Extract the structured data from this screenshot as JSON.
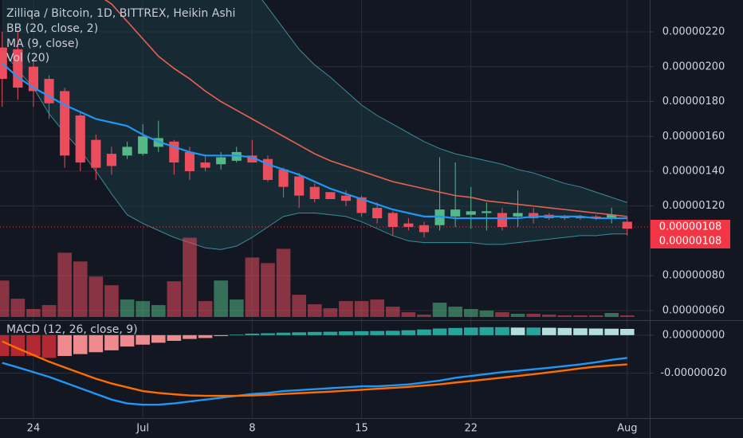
{
  "chart_data": [
    {
      "type": "candlestick",
      "title": "Zilliqa / Bitcoin, 1D, BITTREX, Heikin Ashi",
      "x": [
        -2,
        -1,
        0,
        1,
        2,
        3,
        4,
        5,
        6,
        7,
        8,
        9,
        10,
        11,
        12,
        13,
        14,
        15,
        16,
        17,
        18,
        19,
        20,
        21,
        22,
        23,
        24,
        25,
        26,
        27,
        28,
        29,
        30,
        31,
        32,
        33,
        34,
        35,
        36,
        37,
        38
      ],
      "open": [
        2.11e-06,
        2.1e-06,
        2e-06,
        1.93e-06,
        1.86e-06,
        1.72e-06,
        1.58e-06,
        1.5e-06,
        1.49e-06,
        1.5e-06,
        1.54e-06,
        1.57e-06,
        1.51e-06,
        1.45e-06,
        1.44e-06,
        1.46e-06,
        1.49e-06,
        1.47e-06,
        1.41e-06,
        1.37e-06,
        1.31e-06,
        1.28e-06,
        1.26e-06,
        1.25e-06,
        1.19e-06,
        1.16e-06,
        1.1e-06,
        1.09e-06,
        1.09e-06,
        1.14e-06,
        1.15e-06,
        1.16e-06,
        1.16e-06,
        1.14e-06,
        1.16e-06,
        1.15e-06,
        1.14e-06,
        1.14e-06,
        1.14e-06,
        1.13e-06,
        1.11e-06
      ],
      "high": [
        2.2e-06,
        2.2e-06,
        2.04e-06,
        1.95e-06,
        1.88e-06,
        1.74e-06,
        1.61e-06,
        1.54e-06,
        1.57e-06,
        1.67e-06,
        1.69e-06,
        1.58e-06,
        1.54e-06,
        1.49e-06,
        1.51e-06,
        1.54e-06,
        1.58e-06,
        1.49e-06,
        1.42e-06,
        1.39e-06,
        1.33e-06,
        1.28e-06,
        1.29e-06,
        1.26e-06,
        1.22e-06,
        1.17e-06,
        1.13e-06,
        1.11e-06,
        1.48e-06,
        1.45e-06,
        1.31e-06,
        1.22e-06,
        1.19e-06,
        1.29e-06,
        1.19e-06,
        1.16e-06,
        1.15e-06,
        1.15e-06,
        1.15e-06,
        1.19e-06,
        1.14e-06
      ],
      "low": [
        1.77e-06,
        1.81e-06,
        1.77e-06,
        1.7e-06,
        1.42e-06,
        1.4e-06,
        1.35e-06,
        1.38e-06,
        1.47e-06,
        1.49e-06,
        1.51e-06,
        1.38e-06,
        1.35e-06,
        1.4e-06,
        1.41e-06,
        1.45e-06,
        1.45e-06,
        1.34e-06,
        1.25e-06,
        1.19e-06,
        1.22e-06,
        1.24e-06,
        1.2e-06,
        1.14e-06,
        1.1e-06,
        1.03e-06,
        1.06e-06,
        1.02e-06,
        1.06e-06,
        1.08e-06,
        1.07e-06,
        1.06e-06,
        1.06e-06,
        1.08e-06,
        1.1e-06,
        1.12e-06,
        1.12e-06,
        1.12e-06,
        1.12e-06,
        1.1e-06,
        1.03e-06
      ],
      "close": [
        1.93e-06,
        1.88e-06,
        1.86e-06,
        1.79e-06,
        1.49e-06,
        1.45e-06,
        1.42e-06,
        1.43e-06,
        1.54e-06,
        1.6e-06,
        1.59e-06,
        1.45e-06,
        1.4e-06,
        1.42e-06,
        1.48e-06,
        1.51e-06,
        1.45e-06,
        1.35e-06,
        1.31e-06,
        1.26e-06,
        1.24e-06,
        1.24e-06,
        1.23e-06,
        1.16e-06,
        1.13e-06,
        1.08e-06,
        1.08e-06,
        1.05e-06,
        1.18e-06,
        1.18e-06,
        1.17e-06,
        1.17e-06,
        1.08e-06,
        1.16e-06,
        1.13e-06,
        1.13e-06,
        1.13e-06,
        1.13e-06,
        1.13e-06,
        1.15e-06,
        1.07e-06
      ],
      "up_color": "#53b987",
      "down_color": "#eb4d5c",
      "xlim": [
        -2.14,
        39.44
      ],
      "xticks": [
        {
          "value": 0,
          "label": "24"
        },
        {
          "value": 7,
          "label": "Jul"
        },
        {
          "value": 14,
          "label": "8"
        },
        {
          "value": 21,
          "label": "15"
        },
        {
          "value": 28,
          "label": "22"
        },
        {
          "value": 38,
          "label": "Aug"
        }
      ],
      "ylim": [
        5.45e-07,
        2.383e-06
      ],
      "yticks": [
        {
          "value": 6e-07,
          "label": "0.00000060"
        },
        {
          "value": 8e-07,
          "label": "0.00000080"
        },
        {
          "value": 1.2e-06,
          "label": "0.00000120"
        },
        {
          "value": 1.4e-06,
          "label": "0.00000140"
        },
        {
          "value": 1.6e-06,
          "label": "0.00000160"
        },
        {
          "value": 1.8e-06,
          "label": "0.00000180"
        },
        {
          "value": 2e-06,
          "label": "0.00000200"
        },
        {
          "value": 2.2e-06,
          "label": "0.00000220"
        }
      ],
      "grid": true,
      "bands": {
        "name": "BB (20, close, 2)",
        "band_color": "#3a8c9a",
        "basis_color": "#e8614f",
        "fill": "#1b3a44",
        "upper": [
          4.2e-06,
          4.1e-06,
          4e-06,
          3.9e-06,
          3.8e-06,
          3.7e-06,
          3.6e-06,
          3.5e-06,
          3.4e-06,
          3.3e-06,
          3.2e-06,
          3.1e-06,
          3e-06,
          2.9e-06,
          2.75e-06,
          2.6e-06,
          2.46e-06,
          2.34e-06,
          2.22e-06,
          2.1e-06,
          2.01e-06,
          1.94e-06,
          1.86e-06,
          1.78e-06,
          1.72e-06,
          1.67e-06,
          1.62e-06,
          1.57e-06,
          1.53e-06,
          1.5e-06,
          1.48e-06,
          1.46e-06,
          1.44e-06,
          1.41e-06,
          1.39e-06,
          1.36e-06,
          1.33e-06,
          1.31e-06,
          1.28e-06,
          1.25e-06,
          1.22e-06
        ],
        "basis": [
          2.96e-06,
          2.87e-06,
          2.78e-06,
          2.69e-06,
          2.6e-06,
          2.51e-06,
          2.42e-06,
          2.36e-06,
          2.26e-06,
          2.16e-06,
          2.06e-06,
          1.99e-06,
          1.93e-06,
          1.86e-06,
          1.8e-06,
          1.75e-06,
          1.7e-06,
          1.65e-06,
          1.6e-06,
          1.55e-06,
          1.5e-06,
          1.46e-06,
          1.43e-06,
          1.4e-06,
          1.37e-06,
          1.34e-06,
          1.32e-06,
          1.3e-06,
          1.28e-06,
          1.26e-06,
          1.25e-06,
          1.23e-06,
          1.22e-06,
          1.21e-06,
          1.2e-06,
          1.19e-06,
          1.18e-06,
          1.17e-06,
          1.16e-06,
          1.15e-06,
          1.14e-06
        ],
        "lower": [
          2.1e-06,
          1.98e-06,
          1.88e-06,
          1.73e-06,
          1.62e-06,
          1.52e-06,
          1.4e-06,
          1.27e-06,
          1.15e-06,
          1.1e-06,
          1.06e-06,
          1.02e-06,
          9.9e-07,
          9.6e-07,
          9.5e-07,
          9.7e-07,
          1.02e-06,
          1.08e-06,
          1.14e-06,
          1.16e-06,
          1.16e-06,
          1.15e-06,
          1.14e-06,
          1.11e-06,
          1.07e-06,
          1.03e-06,
          1e-06,
          9.9e-07,
          9.9e-07,
          9.9e-07,
          9.9e-07,
          9.8e-07,
          9.8e-07,
          9.9e-07,
          1e-06,
          1.01e-06,
          1.02e-06,
          1.03e-06,
          1.03e-06,
          1.04e-06,
          1.04e-06
        ]
      },
      "series": [
        {
          "name": "MA (9, close)",
          "color": "#2196f3",
          "values": [
            2.02e-06,
            1.94e-06,
            1.88e-06,
            1.83e-06,
            1.78e-06,
            1.74e-06,
            1.7e-06,
            1.68e-06,
            1.66e-06,
            1.61e-06,
            1.57e-06,
            1.54e-06,
            1.51e-06,
            1.49e-06,
            1.49e-06,
            1.49e-06,
            1.48e-06,
            1.44e-06,
            1.41e-06,
            1.38e-06,
            1.34e-06,
            1.3e-06,
            1.27e-06,
            1.24e-06,
            1.21e-06,
            1.18e-06,
            1.16e-06,
            1.14e-06,
            1.14e-06,
            1.13e-06,
            1.13e-06,
            1.13e-06,
            1.13e-06,
            1.13e-06,
            1.14e-06,
            1.14e-06,
            1.14e-06,
            1.14e-06,
            1.13e-06,
            1.13e-06,
            1.13e-06
          ]
        }
      ],
      "volume": {
        "name": "Vol (20)",
        "ylim": [
          0,
          400
        ],
        "values": [
          46,
          23,
          10,
          15,
          81,
          70,
          51,
          40,
          22,
          20,
          15,
          45,
          100,
          20,
          46,
          22,
          75,
          68,
          86,
          28,
          16,
          11,
          20,
          20,
          22,
          13,
          6,
          3,
          18,
          13,
          10,
          8,
          6,
          4,
          4,
          3,
          2,
          2,
          2,
          5,
          2
        ]
      },
      "price_labels": [
        {
          "value": 1.08e-06,
          "label": "0.00000108"
        },
        {
          "value": 1.08e-06,
          "label": "0.00000108"
        }
      ],
      "price_label_color": "#f23645"
    },
    {
      "type": "macd",
      "title": "MACD (12, 26, close, 9)",
      "ylim": [
        -4.375e-07,
        7.5e-08
      ],
      "yticks": [
        {
          "value": -2e-07,
          "label": "-0.00000020"
        },
        {
          "value": 0,
          "label": "0.00000000"
        }
      ],
      "histogram": [
        -1.1e-07,
        -1.1e-07,
        -1.1e-07,
        -1.2e-07,
        -1.1e-07,
        -1e-07,
        -9e-08,
        -8e-08,
        -6e-08,
        -5e-08,
        -4e-08,
        -3e-08,
        -2e-08,
        -1.5e-08,
        -5e-09,
        3e-09,
        8e-09,
        1e-08,
        1.3e-08,
        1.5e-08,
        1.7e-08,
        1.8e-08,
        2e-08,
        2.1e-08,
        2.2e-08,
        2.3e-08,
        2.6e-08,
        3e-08,
        3.5e-08,
        3.8e-08,
        4e-08,
        4.2e-08,
        4.2e-08,
        4e-08,
        4e-08,
        3.9e-08,
        3.8e-08,
        3.6e-08,
        3.5e-08,
        3.4e-08,
        3.3e-08
      ],
      "histogram_colors": {
        "pos_up": "#26a69a",
        "pos_down": "#b2dfdb",
        "neg_up": "#ef8a8f",
        "neg_down": "#b22833"
      },
      "series": [
        {
          "color": "#2196f3",
          "values": [
            -1.46e-07,
            -1.7e-07,
            -1.95e-07,
            -2.2e-07,
            -2.5e-07,
            -2.8e-07,
            -3.1e-07,
            -3.4e-07,
            -3.6e-07,
            -3.67e-07,
            -3.67e-07,
            -3.6e-07,
            -3.5e-07,
            -3.4e-07,
            -3.3e-07,
            -3.2e-07,
            -3.1e-07,
            -3.05e-07,
            -2.95e-07,
            -2.9e-07,
            -2.85e-07,
            -2.8e-07,
            -2.75e-07,
            -2.7e-07,
            -2.7e-07,
            -2.65e-07,
            -2.6e-07,
            -2.5e-07,
            -2.4e-07,
            -2.25e-07,
            -2.15e-07,
            -2.05e-07,
            -1.95e-07,
            -1.88e-07,
            -1.8e-07,
            -1.72e-07,
            -1.63e-07,
            -1.54e-07,
            -1.43e-07,
            -1.3e-07,
            -1.2e-07
          ]
        },
        {
          "color": "#ff6d00",
          "values": [
            -3.3e-08,
            -7e-08,
            -1.05e-07,
            -1.4e-07,
            -1.7e-07,
            -2e-07,
            -2.3e-07,
            -2.55e-07,
            -2.75e-07,
            -2.95e-07,
            -3.05e-07,
            -3.12e-07,
            -3.18e-07,
            -3.2e-07,
            -3.2e-07,
            -3.2e-07,
            -3.18e-07,
            -3.15e-07,
            -3.1e-07,
            -3.06e-07,
            -3.02e-07,
            -2.98e-07,
            -2.93e-07,
            -2.88e-07,
            -2.83e-07,
            -2.78e-07,
            -2.73e-07,
            -2.66e-07,
            -2.59e-07,
            -2.5e-07,
            -2.42e-07,
            -2.33e-07,
            -2.24e-07,
            -2.15e-07,
            -2.06e-07,
            -1.96e-07,
            -1.86e-07,
            -1.75e-07,
            -1.66e-07,
            -1.6e-07,
            -1.54e-07
          ]
        }
      ]
    }
  ]
}
